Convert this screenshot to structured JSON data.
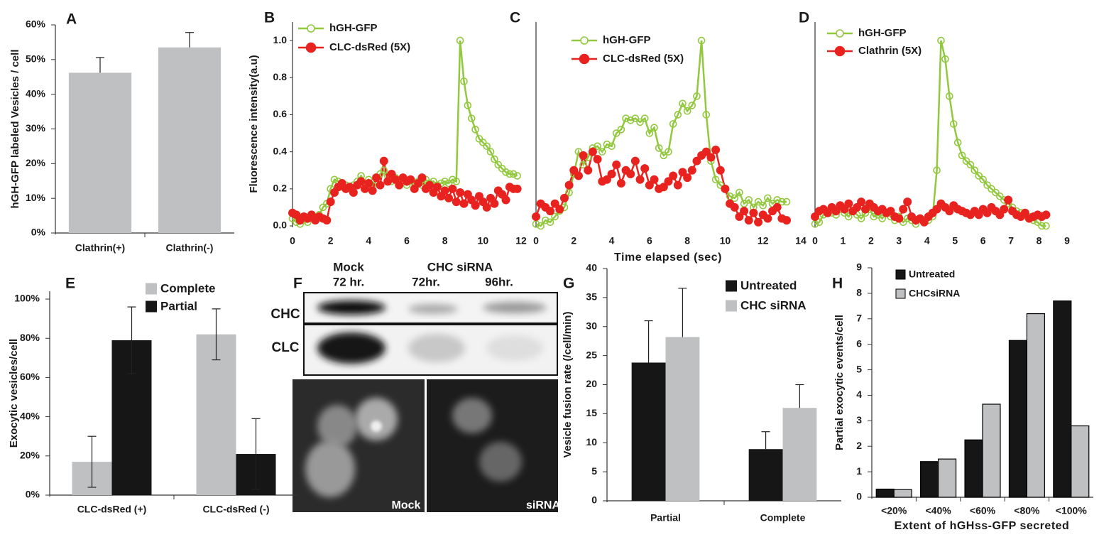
{
  "chart_data": [
    {
      "type": "bar",
      "label": "A",
      "ylabel": "hGH-GFP labeled Vesicles / cell",
      "categories": [
        "Clathrin(+)",
        "Clathrin(-)"
      ],
      "series": [
        {
          "color": "#bfc0c2",
          "values": [
            46.2,
            53.5
          ],
          "errors": [
            4.4,
            4.3
          ]
        }
      ],
      "error_bars": "up",
      "ylim": [
        0,
        60
      ],
      "yticks": [
        {
          "value": 0,
          "label": "0%"
        },
        {
          "value": 10,
          "label": "10%"
        },
        {
          "value": 20,
          "label": "20%"
        },
        {
          "value": 30,
          "label": "30%"
        },
        {
          "value": 40,
          "label": "40%"
        },
        {
          "value": 50,
          "label": "50%"
        },
        {
          "value": 60,
          "label": "60%"
        }
      ]
    },
    {
      "type": "line",
      "label": "B",
      "ylabel": "Fluorescence intensity(a.u)",
      "x": [
        0,
        0.2,
        0.4,
        0.6,
        0.8,
        1,
        1.2,
        1.4,
        1.6,
        1.8,
        2,
        2.2,
        2.4,
        2.6,
        2.8,
        3,
        3.2,
        3.4,
        3.6,
        3.8,
        4,
        4.2,
        4.4,
        4.6,
        4.8,
        5,
        5.2,
        5.4,
        5.6,
        5.8,
        6,
        6.2,
        6.4,
        6.6,
        6.8,
        7,
        7.2,
        7.4,
        7.6,
        7.8,
        8,
        8.2,
        8.4,
        8.6,
        8.8,
        9,
        9.2,
        9.4,
        9.6,
        9.8,
        10,
        10.2,
        10.4,
        10.6,
        10.8,
        11,
        11.2,
        11.4,
        11.6,
        11.8
      ],
      "series": [
        {
          "name": "hGH-GFP",
          "color": "#92c83e",
          "marker": "open",
          "values": [
            0.04,
            0.02,
            0.01,
            0.03,
            0.02,
            0.05,
            0.04,
            0.06,
            0.1,
            0.12,
            0.2,
            0.25,
            0.24,
            0.21,
            0.22,
            0.2,
            0.22,
            0.24,
            0.27,
            0.23,
            0.25,
            0.22,
            0.26,
            0.28,
            0.3,
            0.27,
            0.24,
            0.26,
            0.25,
            0.24,
            0.22,
            0.24,
            0.23,
            0.24,
            0.22,
            0.25,
            0.23,
            0.24,
            0.22,
            0.23,
            0.24,
            0.23,
            0.25,
            0.24,
            1.0,
            0.78,
            0.65,
            0.58,
            0.52,
            0.47,
            0.45,
            0.43,
            0.4,
            0.36,
            0.33,
            0.31,
            0.29,
            0.28,
            0.28,
            0.27
          ]
        },
        {
          "name": "CLC-dsRed (5X)",
          "color": "#e8231f",
          "marker": "filled",
          "values": [
            0.07,
            0.06,
            0.03,
            0.05,
            0.04,
            0.06,
            0.03,
            0.05,
            0.04,
            0.03,
            0.13,
            0.18,
            0.21,
            0.23,
            0.2,
            0.21,
            0.18,
            0.22,
            0.24,
            0.2,
            0.23,
            0.19,
            0.26,
            0.22,
            0.35,
            0.24,
            0.28,
            0.25,
            0.22,
            0.26,
            0.24,
            0.25,
            0.2,
            0.23,
            0.26,
            0.2,
            0.22,
            0.18,
            0.21,
            0.16,
            0.19,
            0.15,
            0.2,
            0.13,
            0.18,
            0.12,
            0.17,
            0.14,
            0.11,
            0.16,
            0.13,
            0.1,
            0.15,
            0.12,
            0.19,
            0.17,
            0.14,
            0.21,
            0.2,
            0.2
          ]
        }
      ],
      "xlim": [
        0,
        12
      ],
      "xticks": [
        0,
        2,
        4,
        6,
        8,
        10,
        12
      ],
      "ylim": [
        0,
        1.1
      ],
      "yticks": [
        {
          "value": 0,
          "label": "0.0"
        },
        0.2,
        0.4,
        0.6,
        0.8,
        {
          "value": 1,
          "label": "1.0"
        }
      ]
    },
    {
      "type": "line",
      "label": "C",
      "xlabel": "Time elapsed (sec)",
      "x": [
        0,
        0.25,
        0.5,
        0.75,
        1,
        1.25,
        1.5,
        1.75,
        2,
        2.25,
        2.5,
        2.75,
        3,
        3.25,
        3.5,
        3.75,
        4,
        4.25,
        4.5,
        4.75,
        5,
        5.25,
        5.5,
        5.75,
        6,
        6.25,
        6.5,
        6.75,
        7,
        7.25,
        7.5,
        7.75,
        8,
        8.25,
        8.5,
        8.75,
        9,
        9.25,
        9.5,
        9.75,
        10,
        10.25,
        10.5,
        10.75,
        11,
        11.25,
        11.5,
        11.75,
        12,
        12.25,
        12.5,
        12.75,
        13,
        13.25
      ],
      "series": [
        {
          "name": "hGH-GFP",
          "color": "#92c83e",
          "marker": "open",
          "values": [
            0.01,
            0.0,
            0.03,
            0.02,
            0.05,
            0.08,
            0.1,
            0.18,
            0.28,
            0.4,
            0.33,
            0.37,
            0.42,
            0.43,
            0.4,
            0.44,
            0.43,
            0.5,
            0.52,
            0.58,
            0.57,
            0.58,
            0.56,
            0.58,
            0.5,
            0.53,
            0.42,
            0.38,
            0.4,
            0.55,
            0.6,
            0.66,
            0.62,
            0.65,
            0.7,
            1.0,
            0.6,
            0.35,
            0.25,
            0.22,
            0.2,
            0.16,
            0.15,
            0.18,
            0.12,
            0.14,
            0.1,
            0.13,
            0.11,
            0.15,
            0.12,
            0.14,
            0.13,
            0.13
          ]
        },
        {
          "name": "CLC-dsRed (5X)",
          "color": "#e8231f",
          "marker": "filled",
          "values": [
            0.05,
            0.12,
            0.1,
            0.08,
            0.12,
            0.09,
            0.15,
            0.22,
            0.3,
            0.27,
            0.38,
            0.3,
            0.4,
            0.36,
            0.24,
            0.25,
            0.28,
            0.33,
            0.23,
            0.3,
            0.28,
            0.35,
            0.25,
            0.31,
            0.22,
            0.25,
            0.2,
            0.21,
            0.24,
            0.27,
            0.22,
            0.29,
            0.26,
            0.3,
            0.35,
            0.38,
            0.4,
            0.37,
            0.41,
            0.3,
            0.2,
            0.12,
            0.1,
            0.05,
            0.08,
            0.03,
            0.07,
            0.02,
            0.06,
            0.04,
            0.08,
            0.1,
            0.04,
            0.03
          ]
        }
      ],
      "xlim": [
        0,
        14
      ],
      "xticks": [
        0,
        2,
        4,
        6,
        8,
        10,
        12,
        14
      ],
      "ylim": [
        0,
        1.1
      ]
    },
    {
      "type": "line",
      "label": "D",
      "x": [
        0,
        0.15,
        0.3,
        0.45,
        0.6,
        0.75,
        0.9,
        1.05,
        1.2,
        1.35,
        1.5,
        1.65,
        1.8,
        1.95,
        2.1,
        2.25,
        2.4,
        2.55,
        2.7,
        2.85,
        3,
        3.15,
        3.3,
        3.45,
        3.6,
        3.75,
        3.9,
        4.05,
        4.2,
        4.35,
        4.5,
        4.65,
        4.8,
        4.95,
        5.1,
        5.25,
        5.4,
        5.55,
        5.7,
        5.85,
        6,
        6.15,
        6.3,
        6.45,
        6.6,
        6.75,
        6.9,
        7.05,
        7.2,
        7.35,
        7.5,
        7.65,
        7.8,
        7.95,
        8.1,
        8.25
      ],
      "series": [
        {
          "name": "hGH-GFP",
          "color": "#92c83e",
          "marker": "open",
          "values": [
            0.01,
            0.02,
            0.06,
            0.08,
            0.07,
            0.06,
            0.09,
            0.07,
            0.05,
            0.08,
            0.06,
            0.04,
            0.07,
            0.09,
            0.05,
            0.06,
            0.04,
            0.07,
            0.05,
            0.03,
            0.05,
            0.02,
            0.04,
            0.03,
            0.01,
            0.04,
            0.02,
            0.03,
            0.05,
            0.3,
            1.0,
            0.9,
            0.7,
            0.55,
            0.45,
            0.38,
            0.35,
            0.33,
            0.3,
            0.27,
            0.25,
            0.22,
            0.2,
            0.18,
            0.16,
            0.14,
            0.12,
            0.1,
            0.08,
            0.07,
            0.06,
            0.05,
            0.03,
            0.02,
            0.0,
            0.0
          ]
        },
        {
          "name": "Clathrin (5X)",
          "color": "#e8231f",
          "marker": "filled",
          "values": [
            0.05,
            0.08,
            0.09,
            0.07,
            0.1,
            0.08,
            0.11,
            0.09,
            0.12,
            0.08,
            0.1,
            0.13,
            0.09,
            0.12,
            0.1,
            0.08,
            0.09,
            0.07,
            0.08,
            0.05,
            0.04,
            0.09,
            0.13,
            0.05,
            0.03,
            0.04,
            0.02,
            0.05,
            0.07,
            0.09,
            0.12,
            0.1,
            0.08,
            0.11,
            0.09,
            0.08,
            0.07,
            0.06,
            0.08,
            0.06,
            0.09,
            0.07,
            0.1,
            0.08,
            0.06,
            0.09,
            0.14,
            0.08,
            0.06,
            0.05,
            0.07,
            0.04,
            0.05,
            0.06,
            0.05,
            0.06
          ]
        }
      ],
      "xlim": [
        0,
        9
      ],
      "xticks": [
        0,
        1,
        2,
        3,
        4,
        5,
        6,
        7,
        8,
        9
      ],
      "ylim": [
        0,
        1.1
      ]
    },
    {
      "type": "bar",
      "label": "E",
      "ylabel": "Exocytic vesicles/cell",
      "categories": [
        "CLC-dsRed (+)",
        "CLC-dsRed (-)"
      ],
      "series": [
        {
          "name": "Complete",
          "color": "#bfc0c2",
          "values": [
            17,
            82
          ],
          "errors": [
            13,
            13
          ]
        },
        {
          "name": "Partial",
          "color": "#161616",
          "values": [
            79,
            21
          ],
          "errors": [
            17,
            18
          ]
        }
      ],
      "error_bars": "both",
      "ylim": [
        0,
        104
      ],
      "yticks": [
        {
          "value": 0,
          "label": "0%"
        },
        {
          "value": 20,
          "label": "20%"
        },
        {
          "value": 40,
          "label": "40%"
        },
        {
          "value": 60,
          "label": "60%"
        },
        {
          "value": 80,
          "label": "80%"
        },
        {
          "value": 100,
          "label": "100%"
        }
      ]
    },
    {
      "type": "bar",
      "label": "G",
      "ylabel": "Vesicle fusion rate (/cell/min)",
      "categories": [
        "Partial",
        "Complete"
      ],
      "series": [
        {
          "name": "Untreated",
          "color": "#161616",
          "values": [
            23.8,
            8.9
          ],
          "errors": [
            7.2,
            3.0
          ]
        },
        {
          "name": "CHC siRNA",
          "color": "#bfc0c2",
          "values": [
            28.2,
            16.0
          ],
          "errors": [
            8.4,
            4.0
          ]
        }
      ],
      "error_bars": "up",
      "ylim": [
        0,
        40
      ],
      "yticks": [
        0,
        5,
        10,
        15,
        20,
        25,
        30,
        35,
        40
      ]
    },
    {
      "type": "bar",
      "label": "H",
      "ylabel": "Partial exocytic events/cell",
      "xlabel": "Extent of hGHss-GFP secreted",
      "categories": [
        "<20%",
        "<40%",
        "<60%",
        "<80%",
        "<100%"
      ],
      "series": [
        {
          "name": "Untreated",
          "color": "#161616",
          "values": [
            0.32,
            1.4,
            2.25,
            6.15,
            7.7
          ]
        },
        {
          "name": "CHCsiRNA",
          "color": "#bfc0c2",
          "values": [
            0.3,
            1.5,
            3.65,
            7.2,
            2.8
          ]
        }
      ],
      "bar_outline": "#000000",
      "ylim": [
        0,
        9
      ],
      "yticks": [
        0,
        1,
        2,
        3,
        4,
        5,
        6,
        7,
        8,
        9
      ]
    }
  ],
  "blot_panel": {
    "label": "F",
    "mock_header": [
      "Mock",
      "72 hr."
    ],
    "sirna_header": "CHC siRNA",
    "sirna_times": [
      "72hr.",
      "96hr."
    ],
    "rows": [
      "CHC",
      "CLC"
    ],
    "image_labels": [
      "Mock",
      "siRNA"
    ]
  }
}
